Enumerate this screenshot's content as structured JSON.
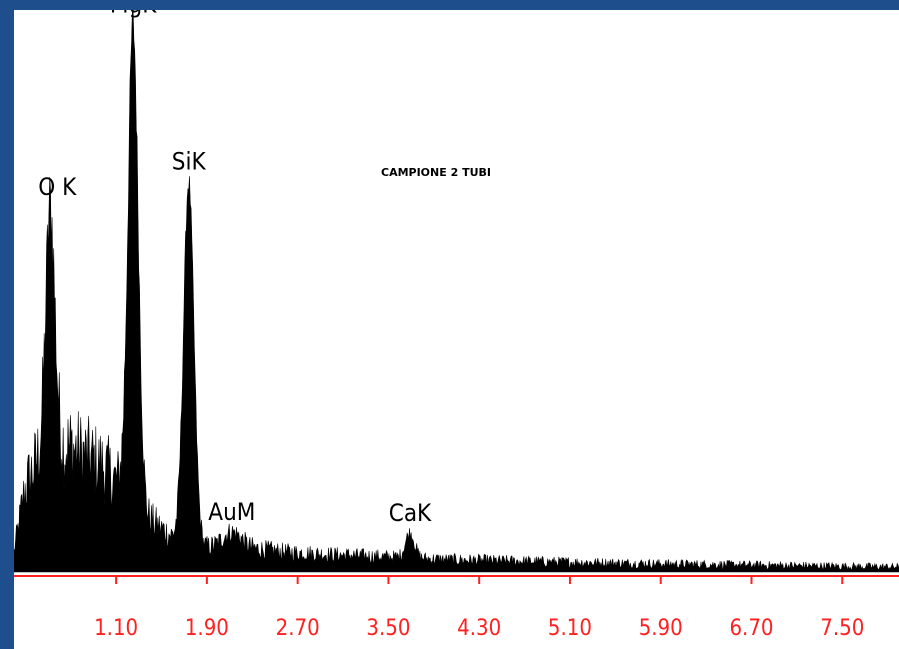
{
  "chart_data": {
    "type": "area",
    "title": "",
    "sample_label": "CAMPIONE 2 TUBI",
    "xlabel": "",
    "ylabel": "",
    "xlim": [
      0.2,
      8.0
    ],
    "ylim": [
      0,
      100
    ],
    "x_ticks": [
      {
        "value": 1.1,
        "label": "1.10"
      },
      {
        "value": 1.9,
        "label": "1.90"
      },
      {
        "value": 2.7,
        "label": "2.70"
      },
      {
        "value": 3.5,
        "label": "3.50"
      },
      {
        "value": 4.3,
        "label": "4.30"
      },
      {
        "value": 5.1,
        "label": "5.10"
      },
      {
        "value": 5.9,
        "label": "5.90"
      },
      {
        "value": 6.7,
        "label": "6.70"
      },
      {
        "value": 7.5,
        "label": "7.50"
      }
    ],
    "peaks": [
      {
        "label": "O K",
        "energy": 0.52,
        "height": 48,
        "width": 0.04
      },
      {
        "label": "MgK",
        "energy": 1.25,
        "height": 96,
        "width": 0.045
      },
      {
        "label": "SiK",
        "energy": 1.74,
        "height": 72,
        "width": 0.045
      },
      {
        "label": "AuM",
        "energy": 2.12,
        "height": 3,
        "width": 0.08
      },
      {
        "label": "CaK",
        "energy": 3.69,
        "height": 5,
        "width": 0.04
      }
    ],
    "background_profile": {
      "x": [
        0.2,
        0.3,
        0.4,
        0.5,
        0.7,
        1.0,
        1.3,
        1.6,
        1.9,
        2.2,
        2.6,
        3.0,
        3.5,
        4.0,
        5.0,
        6.0,
        7.0,
        8.0
      ],
      "y": [
        4,
        17,
        22,
        25,
        25,
        21,
        12,
        7,
        5,
        5,
        4,
        3.5,
        3,
        2.5,
        2,
        1.6,
        1.3,
        1
      ]
    },
    "colors": {
      "frame": "#1f4e8c",
      "plot_bg": "#ffffff",
      "spectrum": "#000000",
      "axis": "#ff2020"
    }
  }
}
